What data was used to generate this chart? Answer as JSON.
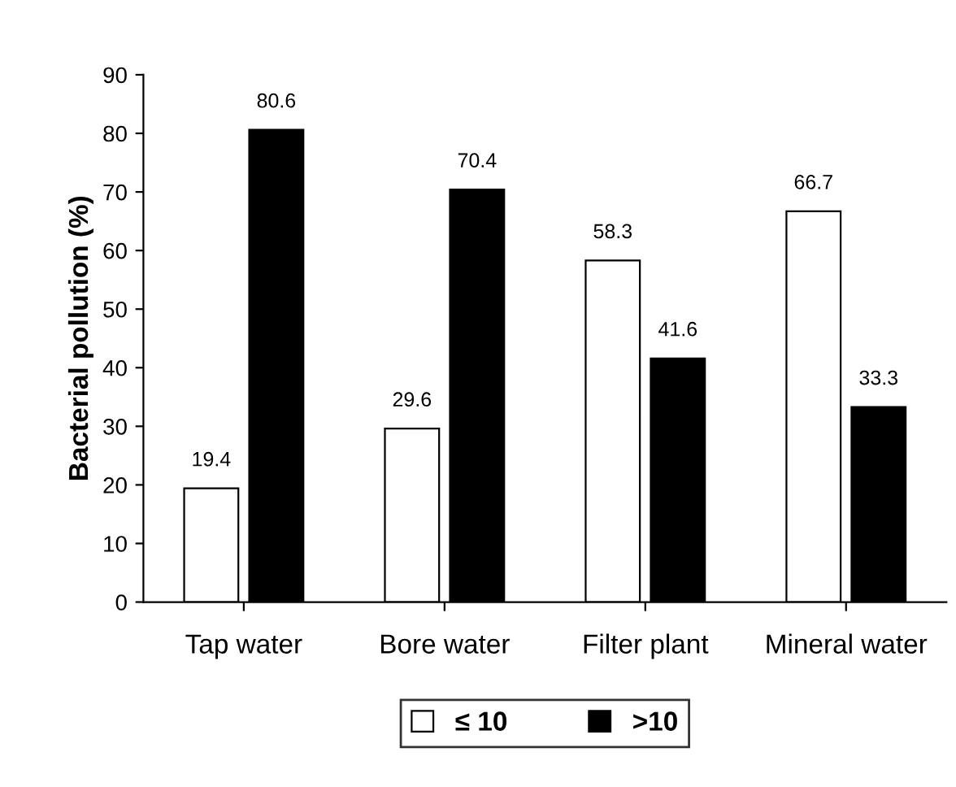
{
  "chart_data": {
    "type": "bar",
    "ylabel": "Bacterial pollution (%)",
    "categories": [
      "Tap water",
      "Bore water",
      "Filter plant",
      "Mineral water"
    ],
    "series": [
      {
        "name": "≤ 10",
        "color": "#ffffff",
        "values": [
          19.4,
          29.6,
          58.3,
          66.7
        ]
      },
      {
        "name": ">10",
        "color": "#000000",
        "values": [
          80.6,
          70.4,
          41.6,
          33.3
        ]
      }
    ],
    "ylim": [
      0,
      90
    ],
    "yticks": [
      0,
      10,
      20,
      30,
      40,
      50,
      60,
      70,
      80,
      90
    ],
    "data_labels": true,
    "grid": false,
    "legend": "bottom"
  }
}
